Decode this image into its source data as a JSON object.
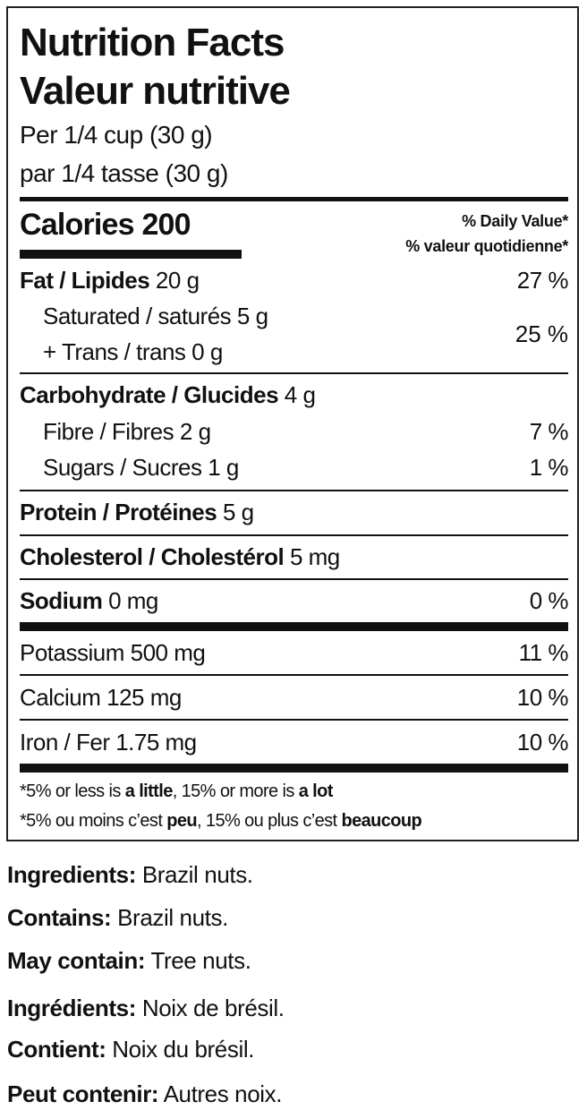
{
  "label": {
    "title_en": "Nutrition Facts",
    "title_fr": "Valeur nutritive",
    "serving_en": "Per 1/4 cup (30 g)",
    "serving_fr": "par 1/4 tasse (30 g)",
    "calories_label": "Calories",
    "calories_value": "200",
    "dv_header_en": "% Daily Value*",
    "dv_header_fr": "% valeur quotidienne*",
    "fat": {
      "label": "Fat / Lipides",
      "amount": "20 g",
      "dv": "27 %"
    },
    "saturated": {
      "label": "Saturated / saturés",
      "amount": "5 g"
    },
    "trans": {
      "label": "+ Trans / trans",
      "amount": "0 g"
    },
    "sat_trans_dv": "25 %",
    "carbohydrate": {
      "label": "Carbohydrate / Glucides",
      "amount": "4 g"
    },
    "fibre": {
      "label": "Fibre / Fibres",
      "amount": "2 g",
      "dv": "7 %"
    },
    "sugars": {
      "label": "Sugars / Sucres",
      "amount": "1 g",
      "dv": "1 %"
    },
    "protein": {
      "label": "Protein / Protéines",
      "amount": "5 g"
    },
    "cholesterol": {
      "label": "Cholesterol / Cholestérol",
      "amount": "5 mg"
    },
    "sodium": {
      "label": "Sodium",
      "amount": "0 mg",
      "dv": "0 %"
    },
    "potassium": {
      "label": "Potassium 500 mg",
      "dv": "11 %"
    },
    "calcium": {
      "label": "Calcium 125 mg",
      "dv": "10 %"
    },
    "iron": {
      "label": "Iron / Fer 1.75 mg",
      "dv": "10 %"
    },
    "footnote_en": {
      "a": "*5% or less is ",
      "b": "a little",
      "c": ", 15% or more is ",
      "d": "a lot"
    },
    "footnote_fr": {
      "a": "*5% ou moins c’est ",
      "b": "peu",
      "c": ", 15% ou plus c’est ",
      "d": "beaucoup"
    }
  },
  "ingredients": [
    {
      "label": "Ingredients:",
      "text": " Brazil nuts."
    },
    {
      "label": "Contains:",
      "text": " Brazil nuts."
    },
    {
      "label": "May contain:",
      "text": " Tree nuts."
    },
    {
      "label": "Ingrédients:",
      "text": " Noix de brésil."
    },
    {
      "label": "Contient:",
      "text": " Noix du brésil."
    },
    {
      "label": "Peut contenir:",
      "text": " Autres noix."
    }
  ]
}
